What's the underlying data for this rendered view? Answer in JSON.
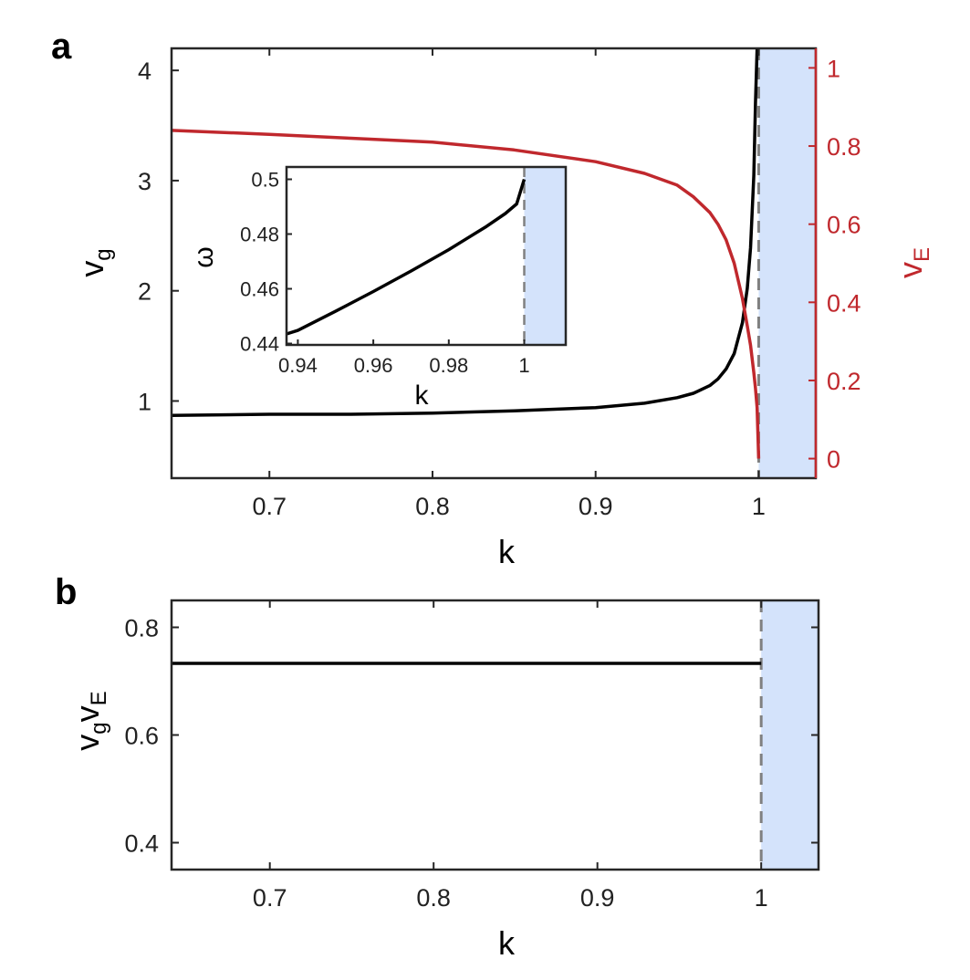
{
  "colors": {
    "black_curve": "#000000",
    "red_curve": "#c0282d",
    "shade": "#d4e3fb",
    "dash": "#808080",
    "axis": "#262626"
  },
  "panel_a": {
    "letter": "a",
    "xlabel": "k",
    "ylabel_left_main": "v",
    "ylabel_left_sub": "g",
    "ylabel_right_main": "v",
    "ylabel_right_sub": "E",
    "x_ticks": [
      "0.7",
      "0.8",
      "0.9",
      "1"
    ],
    "y_left_ticks": [
      "1",
      "2",
      "3",
      "4"
    ],
    "y_right_ticks": [
      "0",
      "0.2",
      "0.4",
      "0.6",
      "0.8",
      "1"
    ],
    "inset": {
      "xlabel": "k",
      "ylabel": "ω",
      "x_ticks": [
        "0.94",
        "0.96",
        "0.98",
        "1"
      ],
      "y_ticks": [
        "0.44",
        "0.46",
        "0.48",
        "0.5"
      ]
    }
  },
  "panel_b": {
    "letter": "b",
    "xlabel": "k",
    "ylabel_main1": "v",
    "ylabel_sub1": "g",
    "ylabel_main2": "v",
    "ylabel_sub2": "E",
    "x_ticks": [
      "0.7",
      "0.8",
      "0.9",
      "1"
    ],
    "y_ticks": [
      "0.4",
      "0.6",
      "0.8"
    ]
  },
  "chart_data": [
    {
      "type": "line",
      "panel": "a",
      "xlabel": "k",
      "ylabel": "v_g",
      "ylabel_right": "v_E",
      "xlim": [
        0.64,
        1.035
      ],
      "ylim_left": [
        0.3,
        4.2
      ],
      "ylim_right": [
        -0.05,
        1.05
      ],
      "shaded_region": [
        1.0,
        1.035
      ],
      "dashed_line_x": 1.0,
      "series": [
        {
          "axis": "left",
          "color": "#000000",
          "x": [
            0.64,
            0.7,
            0.75,
            0.8,
            0.85,
            0.9,
            0.93,
            0.95,
            0.96,
            0.97,
            0.975,
            0.98,
            0.985,
            0.99,
            0.993,
            0.995,
            0.997,
            0.998,
            0.999
          ],
          "y": [
            0.87,
            0.88,
            0.88,
            0.89,
            0.91,
            0.94,
            0.98,
            1.03,
            1.07,
            1.14,
            1.2,
            1.29,
            1.43,
            1.71,
            2.02,
            2.39,
            3.05,
            3.7,
            4.2
          ]
        },
        {
          "axis": "right",
          "color": "#c0282d",
          "x": [
            0.64,
            0.7,
            0.75,
            0.8,
            0.85,
            0.9,
            0.93,
            0.95,
            0.96,
            0.97,
            0.975,
            0.98,
            0.985,
            0.99,
            0.993,
            0.995,
            0.997,
            0.998,
            0.999,
            1.0
          ],
          "y": [
            0.84,
            0.83,
            0.82,
            0.81,
            0.79,
            0.76,
            0.73,
            0.7,
            0.67,
            0.63,
            0.6,
            0.56,
            0.5,
            0.41,
            0.34,
            0.29,
            0.22,
            0.18,
            0.13,
            0.0
          ]
        }
      ]
    },
    {
      "type": "line",
      "panel": "a-inset",
      "xlabel": "k",
      "ylabel": "ω",
      "xlim": [
        0.937,
        1.011
      ],
      "ylim": [
        0.4395,
        0.5045
      ],
      "shaded_region": [
        1.0,
        1.011
      ],
      "dashed_line_x": 1.0,
      "series": [
        {
          "color": "#000000",
          "x": [
            0.937,
            0.94,
            0.95,
            0.96,
            0.97,
            0.98,
            0.99,
            0.995,
            0.998,
            1.0
          ],
          "y": [
            0.4435,
            0.4448,
            0.4518,
            0.459,
            0.4665,
            0.4743,
            0.4828,
            0.4875,
            0.491,
            0.5
          ]
        }
      ]
    },
    {
      "type": "line",
      "panel": "b",
      "xlabel": "k",
      "ylabel": "v_g v_E",
      "xlim": [
        0.64,
        1.035
      ],
      "ylim": [
        0.35,
        0.85
      ],
      "shaded_region": [
        1.0,
        1.035
      ],
      "dashed_line_x": 1.0,
      "series": [
        {
          "color": "#000000",
          "x": [
            0.64,
            0.7,
            0.8,
            0.9,
            1.0
          ],
          "y": [
            0.733,
            0.733,
            0.733,
            0.733,
            0.733
          ]
        }
      ]
    }
  ]
}
